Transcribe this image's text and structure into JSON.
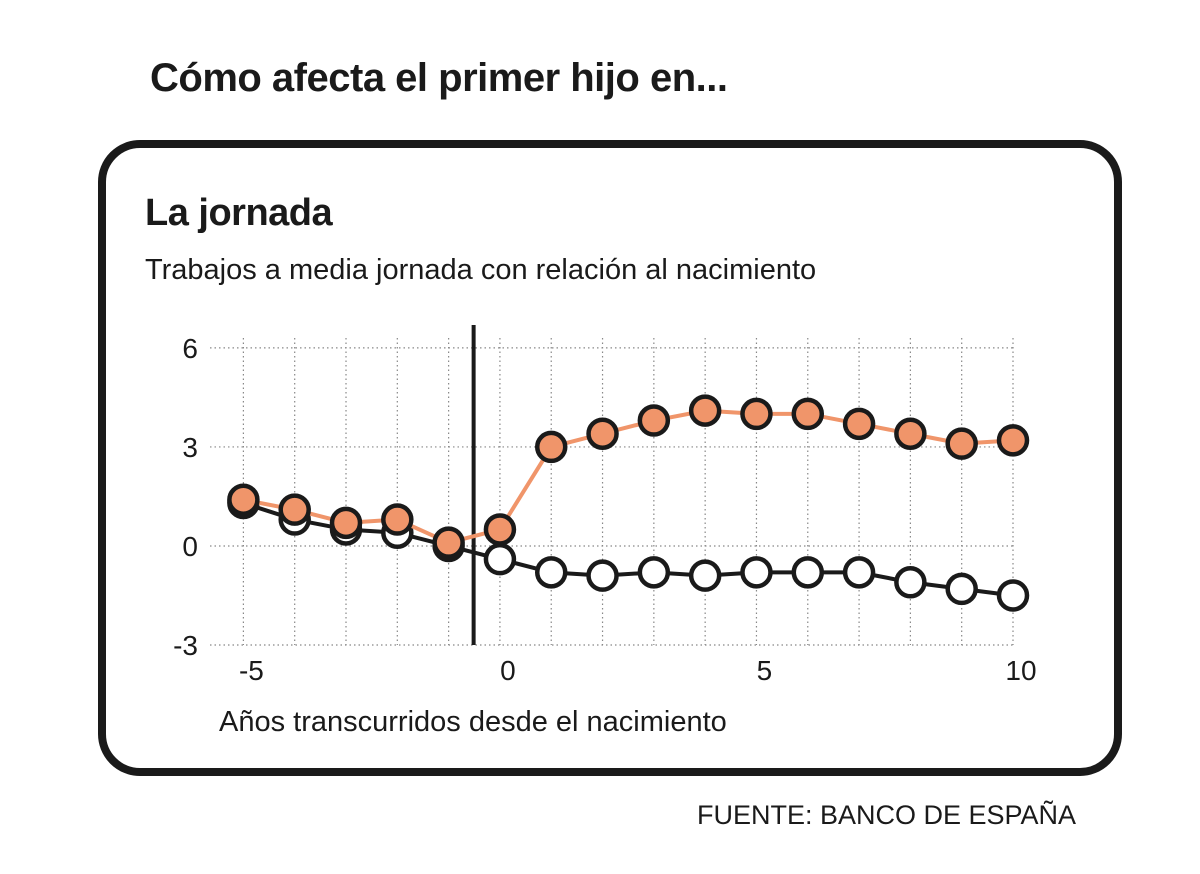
{
  "headline": "Cómo afecta el primer hijo en...",
  "card": {
    "title": "La jornada",
    "subtitle": "Trabajos a media jornada con relación al nacimiento"
  },
  "source": "FUENTE: BANCO DE ESPAÑA",
  "colors": {
    "orange_series": "#f0956a",
    "dark_series": "#1a1a1a",
    "marker_outline": "#1a1a1a",
    "hollow_fill": "#ffffff"
  },
  "chart_data": {
    "type": "line",
    "title": "La jornada",
    "subtitle": "Trabajos a media jornada con relación al nacimiento",
    "xlabel": "Años transcurridos desde el nacimiento",
    "ylabel": "",
    "xlim": [
      -5.3,
      10
    ],
    "ylim": [
      -3,
      6.3
    ],
    "x_ticks": [
      -5,
      0,
      5,
      10
    ],
    "x_tick_labels": [
      "-5",
      "0",
      "5",
      "10"
    ],
    "y_ticks": [
      -3,
      0,
      3,
      6
    ],
    "y_tick_labels": [
      "-3",
      "0",
      "3",
      "6"
    ],
    "grid": true,
    "reference_line_x": -1,
    "x": [
      -5,
      -4,
      -3,
      -2,
      -1,
      0,
      1,
      2,
      3,
      4,
      5,
      6,
      7,
      8,
      9,
      10
    ],
    "series": [
      {
        "marker": "hollow",
        "values": [
          1.3,
          0.8,
          0.5,
          0.4,
          0.0,
          -0.4,
          -0.8,
          -0.9,
          -0.8,
          -0.9,
          -0.8,
          -0.8,
          -0.8,
          -1.1,
          -1.3,
          -1.5
        ]
      },
      {
        "marker": "filled",
        "values": [
          1.4,
          1.1,
          0.7,
          0.8,
          0.1,
          0.5,
          3.0,
          3.4,
          3.8,
          4.1,
          4.0,
          4.0,
          3.7,
          3.4,
          3.1,
          3.2
        ]
      }
    ]
  }
}
